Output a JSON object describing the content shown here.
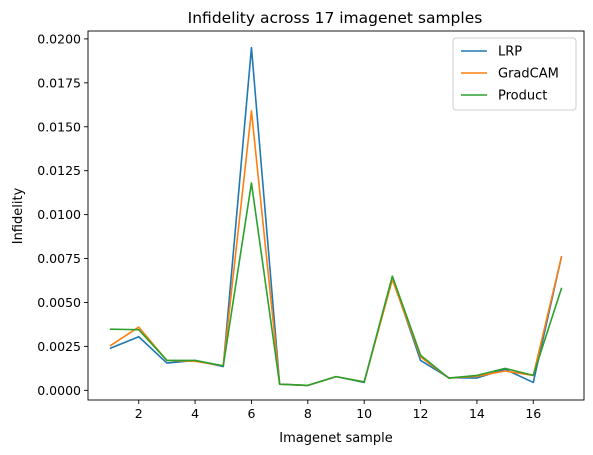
{
  "chart_data": {
    "type": "line",
    "title": "Infidelity across 17 imagenet samples",
    "xlabel": "Imagenet sample",
    "ylabel": "Infidelity",
    "x": [
      1,
      2,
      3,
      4,
      5,
      6,
      7,
      8,
      9,
      10,
      11,
      12,
      13,
      14,
      15,
      16,
      17
    ],
    "xlim": [
      0.2,
      17.8
    ],
    "ylim": [
      -0.00055,
      0.02045
    ],
    "xticks": [
      2,
      4,
      6,
      8,
      10,
      12,
      14,
      16
    ],
    "xtick_labels": [
      "2",
      "4",
      "6",
      "8",
      "10",
      "12",
      "14",
      "16"
    ],
    "yticks": [
      0,
      0.0025,
      0.005,
      0.0075,
      0.01,
      0.0125,
      0.015,
      0.0175,
      0.02
    ],
    "ytick_labels": [
      "0.0000",
      "0.0025",
      "0.0050",
      "0.0075",
      "0.0100",
      "0.0125",
      "0.0150",
      "0.0175",
      "0.0200"
    ],
    "grid": false,
    "legend_position": "upper right",
    "series": [
      {
        "name": "LRP",
        "color": "#1f77b4",
        "values": [
          0.0024,
          0.00305,
          0.00155,
          0.0017,
          0.00135,
          0.0195,
          0.00035,
          0.00028,
          0.00078,
          0.00045,
          0.0064,
          0.0017,
          0.00072,
          0.0007,
          0.0012,
          0.00045,
          0.0076
        ]
      },
      {
        "name": "GradCAM",
        "color": "#ff7f0e",
        "values": [
          0.00255,
          0.0036,
          0.0017,
          0.00165,
          0.0014,
          0.0159,
          0.00035,
          0.00028,
          0.00078,
          0.00048,
          0.0063,
          0.0019,
          0.0007,
          0.0008,
          0.0011,
          0.00085,
          0.0076
        ]
      },
      {
        "name": "Product",
        "color": "#2ca02c",
        "values": [
          0.00348,
          0.00345,
          0.0017,
          0.0017,
          0.0014,
          0.0118,
          0.00035,
          0.00028,
          0.00078,
          0.00048,
          0.0065,
          0.002,
          0.0007,
          0.00085,
          0.00125,
          0.00085,
          0.0058
        ]
      }
    ]
  }
}
